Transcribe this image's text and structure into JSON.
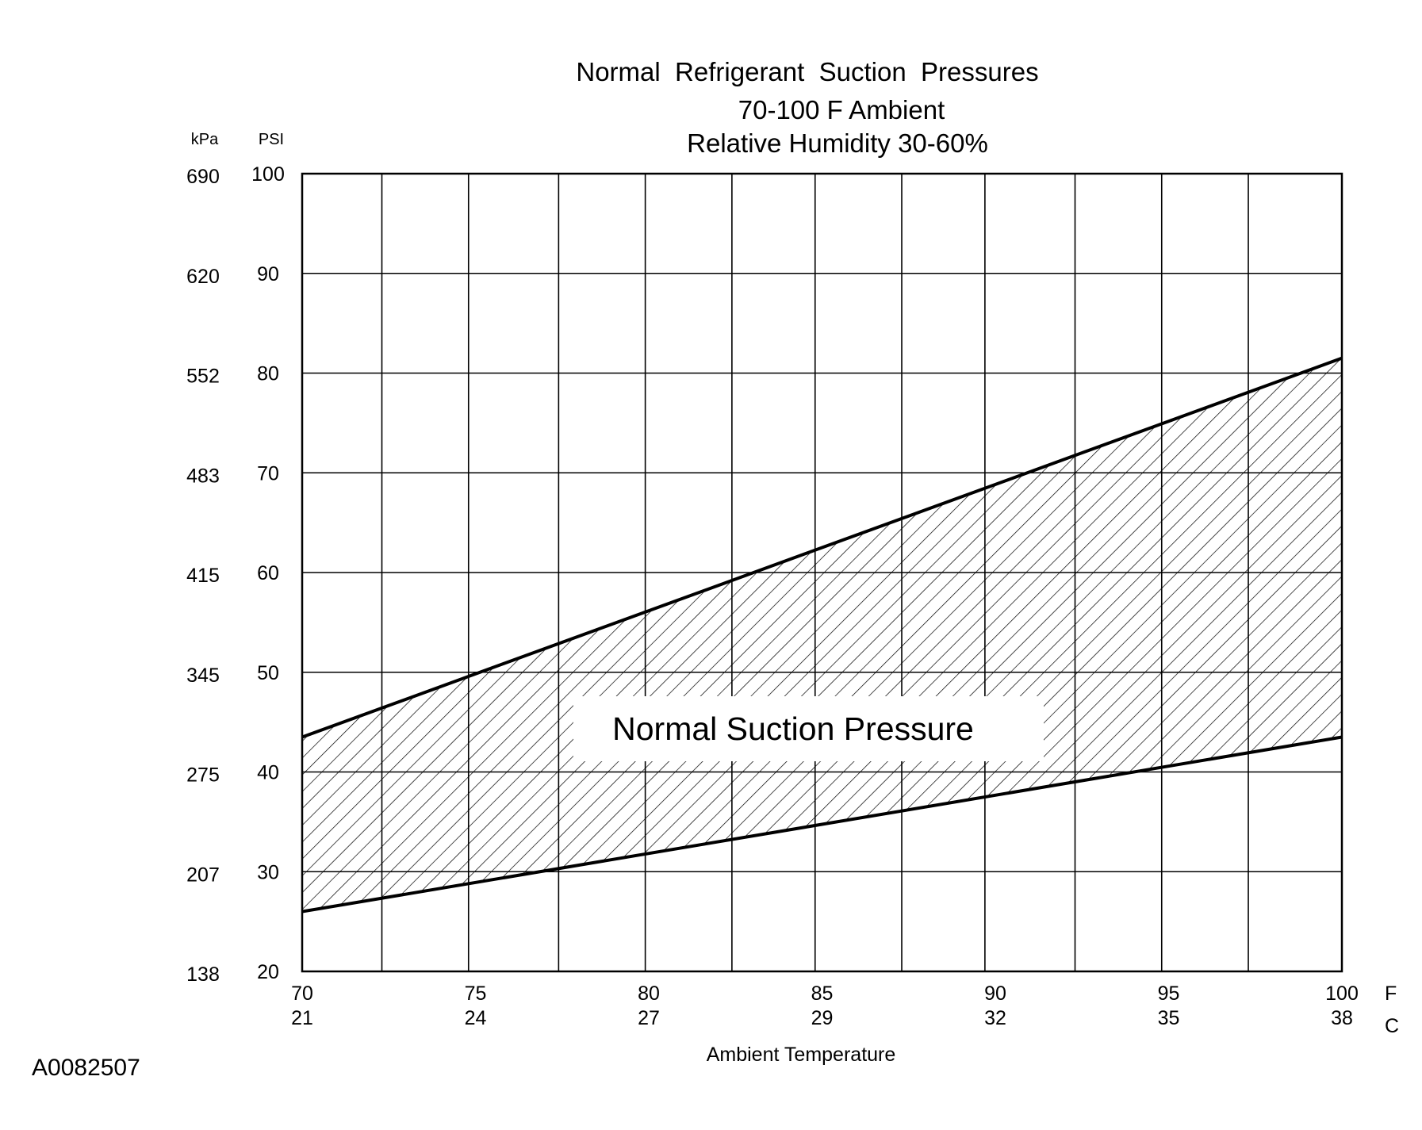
{
  "chart_data": {
    "type": "area",
    "title": "Normal  Refrigerant  Suction  Pressures",
    "subtitle_lines": [
      "70-100 F Ambient",
      "Relative Humidity 30-60%"
    ],
    "xlabel": "Ambient Temperature",
    "x_units": [
      "F",
      "C"
    ],
    "y_units": [
      "kPa",
      "PSI"
    ],
    "xlim": [
      70,
      100
    ],
    "ylim": [
      20,
      100
    ],
    "x_ticks_f": [
      "70",
      "75",
      "80",
      "85",
      "90",
      "95",
      "100"
    ],
    "x_ticks_c": [
      "21",
      "24",
      "27",
      "29",
      "32",
      "35",
      "38"
    ],
    "y_ticks_psi": [
      "100",
      "90",
      "80",
      "70",
      "60",
      "50",
      "40",
      "30",
      "20"
    ],
    "y_ticks_kpa": [
      "690",
      "620",
      "552",
      "483",
      "415",
      "345",
      "275",
      "207",
      "138"
    ],
    "y_gridlines_psi": [
      30,
      40,
      50,
      60,
      70,
      80,
      90
    ],
    "x_gridlines_f": [
      72.3,
      74.8,
      77.4,
      79.9,
      82.4,
      84.8,
      87.3,
      89.7,
      92.3,
      94.8,
      97.3
    ],
    "grid": true,
    "series": [
      {
        "role": "upper bound",
        "x": [
          70,
          100
        ],
        "values": [
          43.5,
          81.5
        ]
      },
      {
        "role": "lower bound",
        "x": [
          70,
          100
        ],
        "values": [
          26,
          43.5
        ]
      }
    ],
    "band_label": "Normal Suction Pressure",
    "hatch": "diagonal"
  },
  "figure_id": "A0082507"
}
